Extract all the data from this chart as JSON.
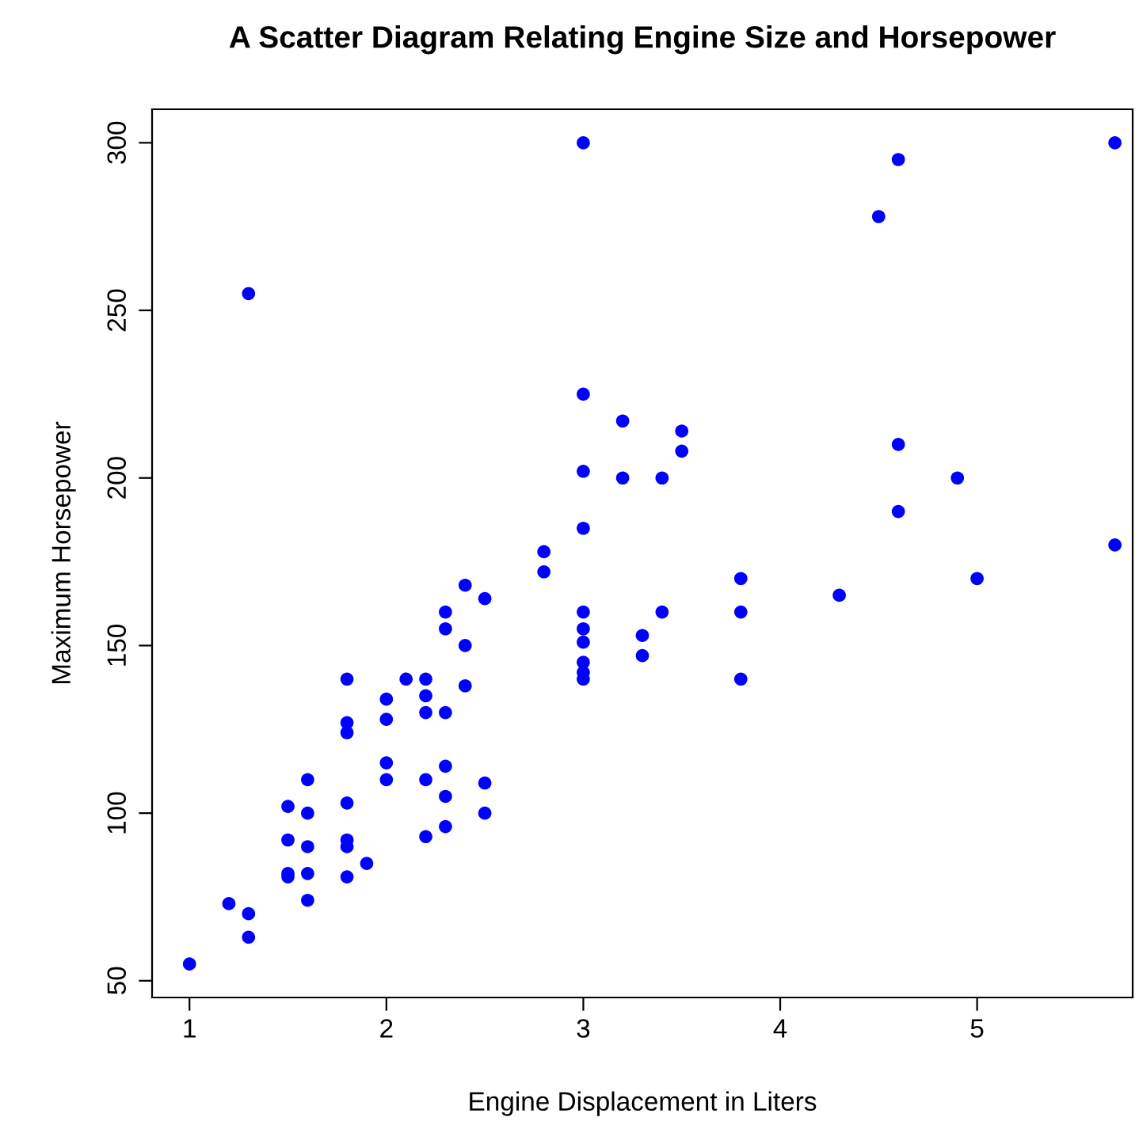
{
  "chart_data": {
    "type": "scatter",
    "title": "A Scatter Diagram Relating Engine Size and Horsepower",
    "xlabel": "Engine Displacement in Liters",
    "ylabel": "Maximum Horsepower",
    "series": [
      {
        "color": "#0000ff",
        "x": [
          1.0,
          1.2,
          1.3,
          1.3,
          1.3,
          1.5,
          1.5,
          1.5,
          1.5,
          1.6,
          1.6,
          1.6,
          1.6,
          1.6,
          1.8,
          1.8,
          1.8,
          1.8,
          1.8,
          1.8,
          1.8,
          1.9,
          2.0,
          2.0,
          2.0,
          2.0,
          2.1,
          2.2,
          2.2,
          2.2,
          2.2,
          2.2,
          2.3,
          2.3,
          2.3,
          2.3,
          2.3,
          2.3,
          2.4,
          2.4,
          2.4,
          2.5,
          2.5,
          2.5,
          2.8,
          2.8,
          3.0,
          3.0,
          3.0,
          3.0,
          3.0,
          3.0,
          3.0,
          3.0,
          3.0,
          3.0,
          3.2,
          3.2,
          3.3,
          3.3,
          3.4,
          3.4,
          3.5,
          3.5,
          3.8,
          3.8,
          3.8,
          4.3,
          4.5,
          4.6,
          4.6,
          4.6,
          4.9,
          5.0,
          5.7,
          5.7
        ],
        "values": [
          55,
          73,
          70,
          63,
          255,
          102,
          92,
          82,
          81,
          110,
          100,
          90,
          82,
          74,
          140,
          127,
          124,
          103,
          92,
          90,
          81,
          85,
          134,
          128,
          115,
          110,
          140,
          140,
          135,
          130,
          110,
          93,
          160,
          155,
          130,
          114,
          105,
          96,
          168,
          150,
          138,
          164,
          109,
          100,
          178,
          172,
          300,
          225,
          202,
          185,
          160,
          155,
          151,
          145,
          142,
          140,
          217,
          200,
          153,
          147,
          200,
          160,
          214,
          208,
          170,
          160,
          140,
          165,
          278,
          295,
          210,
          190,
          200,
          170,
          300,
          180
        ]
      }
    ],
    "xlim": [
      0.81,
      5.79
    ],
    "ylim": [
      45,
      310
    ],
    "xticks": [
      1,
      2,
      3,
      4,
      5
    ],
    "yticks": [
      50,
      100,
      150,
      200,
      250,
      300
    ],
    "marker": "circle",
    "grid": false,
    "legend": false
  }
}
